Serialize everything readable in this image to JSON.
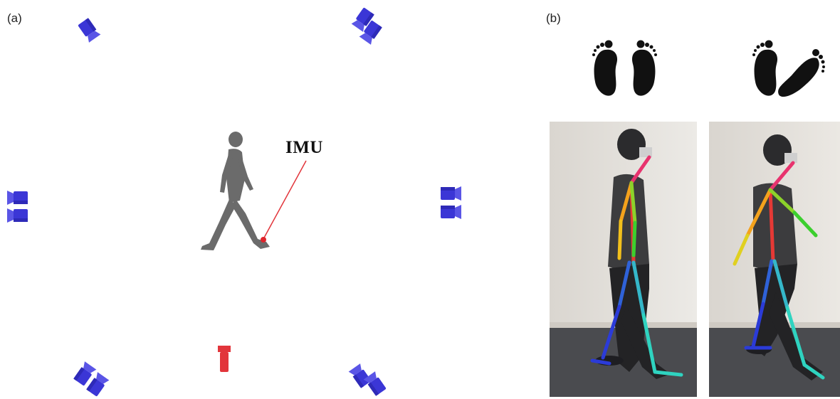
{
  "figure": {
    "panel_a": {
      "label": "(a)",
      "imu_label": "IMU",
      "camera_color": "#3b36d6",
      "highlight_camera_color": "#e2353b"
    },
    "panel_b": {
      "label": "(b)",
      "footprint_icons": [
        "feet-parallel-icon",
        "feet-stride-icon"
      ],
      "skeleton_colors": {
        "head": "#e8336e",
        "spine": "#e53935",
        "right_arm": "#f4a21c",
        "left_arm": "#3ccf2e",
        "right_leg": "#2b3bd8",
        "left_leg": "#2fd3c0"
      }
    }
  }
}
